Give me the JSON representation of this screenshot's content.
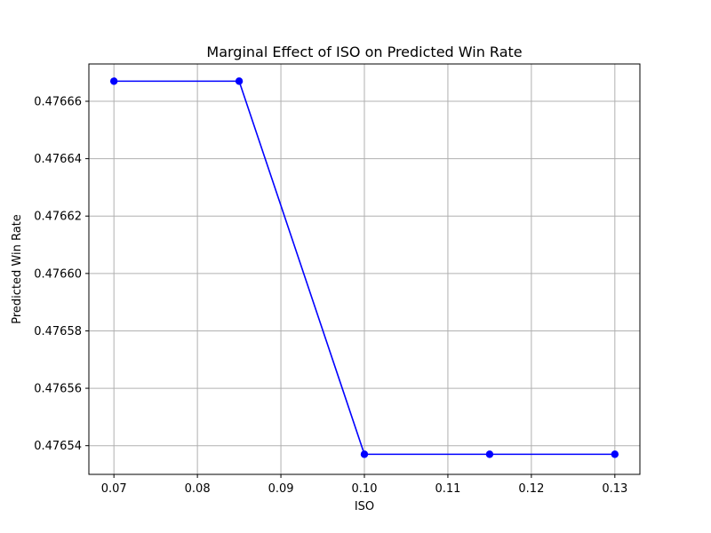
{
  "chart_data": {
    "type": "line",
    "title": "Marginal Effect of ISO on Predicted Win Rate",
    "xlabel": "ISO",
    "ylabel": "Predicted Win Rate",
    "x": [
      0.07,
      0.085,
      0.1,
      0.115,
      0.13
    ],
    "series": [
      {
        "values": [
          0.476667,
          0.476667,
          0.476537,
          0.476537,
          0.476537
        ],
        "color": "#0000ff",
        "marker": "circle"
      }
    ],
    "xlim": [
      0.067,
      0.133
    ],
    "ylim": [
      0.47653,
      0.476673
    ],
    "xticks": [
      0.07,
      0.08,
      0.09,
      0.1,
      0.11,
      0.12,
      0.13
    ],
    "xtick_labels": [
      "0.07",
      "0.08",
      "0.09",
      "0.10",
      "0.11",
      "0.12",
      "0.13"
    ],
    "yticks": [
      0.47654,
      0.47656,
      0.47658,
      0.4766,
      0.47662,
      0.47664,
      0.47666
    ],
    "ytick_labels": [
      "0.47654",
      "0.47656",
      "0.47658",
      "0.47660",
      "0.47662",
      "0.47664",
      "0.47666"
    ],
    "grid": true
  }
}
